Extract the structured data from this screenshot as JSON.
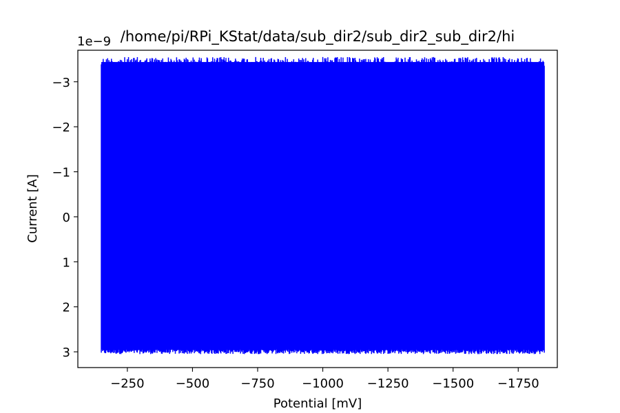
{
  "chart_data": {
    "type": "line",
    "title": "/home/pi/RPi_KStat/data/sub_dir2/sub_dir2_sub_dir2/hi",
    "xlabel": "Potential [mV]",
    "ylabel": "Current [A]",
    "y_offset_label": "1e−9",
    "xlim": [
      -60,
      -1900
    ],
    "ylim": [
      3.35,
      -3.7
    ],
    "x_ticks": [
      -250,
      -500,
      -750,
      -1000,
      -1250,
      -1500,
      -1750
    ],
    "x_tick_labels": [
      "−250",
      "−500",
      "−750",
      "−1000",
      "−1250",
      "−1500",
      "−1750"
    ],
    "y_ticks": [
      -3,
      -2,
      -1,
      0,
      1,
      2,
      3
    ],
    "y_tick_labels": [
      "−3",
      "−2",
      "−1",
      "0",
      "1",
      "2",
      "3"
    ],
    "y_scale_factor": "1e-9",
    "grid": false,
    "series": [
      {
        "color": "#0000ff",
        "x_range": [
          -150,
          -1850
        ],
        "y_min_approx": 3.0,
        "y_max_approx": -3.5,
        "description_values": {
          "x": [
            -150,
            -150,
            -1850,
            -1850
          ],
          "y": [
            -3.5,
            3.0,
            -3.4,
            3.0
          ]
        }
      }
    ]
  }
}
